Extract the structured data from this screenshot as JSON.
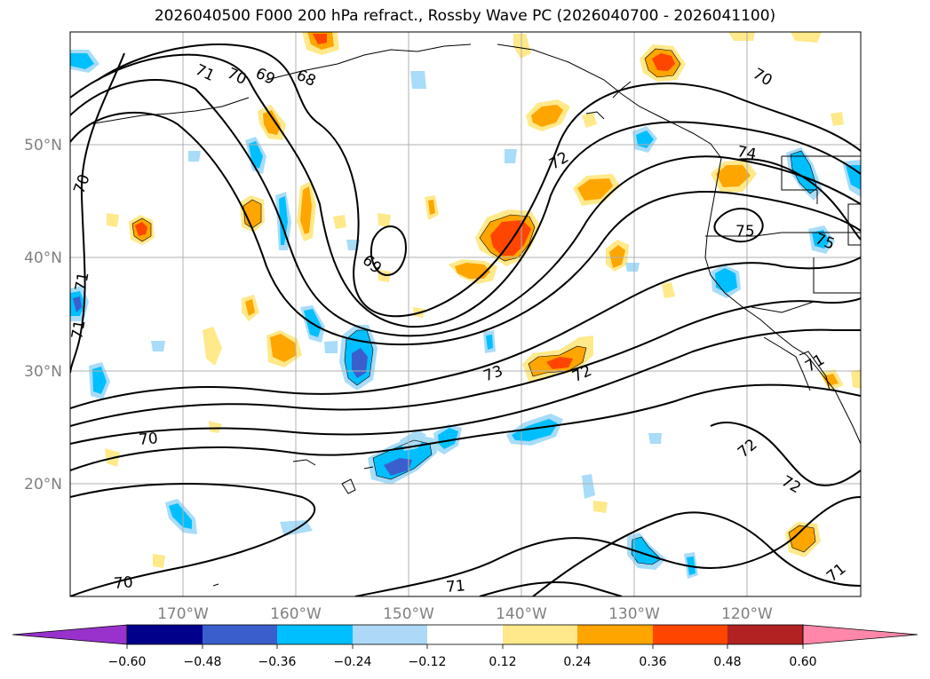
{
  "title": "2026040500 F000 200 hPa refract., Rossby Wave PC (2026040700 - 2026041100)",
  "map": {
    "lat_labels": [
      "50°N",
      "40°N",
      "30°N",
      "20°N"
    ],
    "lon_labels": [
      "170°W",
      "160°W",
      "150°W",
      "140°W",
      "130°W",
      "120°W"
    ],
    "contour_labels": [
      "71",
      "70",
      "69",
      "68",
      "70",
      "71",
      "71",
      "70",
      "69",
      "72",
      "74",
      "75",
      "75",
      "73",
      "72",
      "70",
      "72",
      "72",
      "71",
      "70",
      "71",
      "71"
    ],
    "positive_color_1": "#ffe98a",
    "positive_color_2": "#ffa500",
    "positive_color_3": "#ff4500",
    "negative_color_1": "#a8dcf8",
    "negative_color_2": "#00bfff",
    "negative_color_3": "#3a5fcd"
  },
  "colorbar": {
    "ticks": [
      "−0.60",
      "−0.48",
      "−0.36",
      "−0.24",
      "−0.12",
      "0.12",
      "0.24",
      "0.36",
      "0.48",
      "0.60"
    ],
    "colors": [
      "#9932cc",
      "#00008b",
      "#3a5fcd",
      "#00bfff",
      "#add8f7",
      "#ffffff",
      "#ffe98a",
      "#ffa500",
      "#ff4500",
      "#b22222",
      "#ff88aa"
    ]
  }
}
